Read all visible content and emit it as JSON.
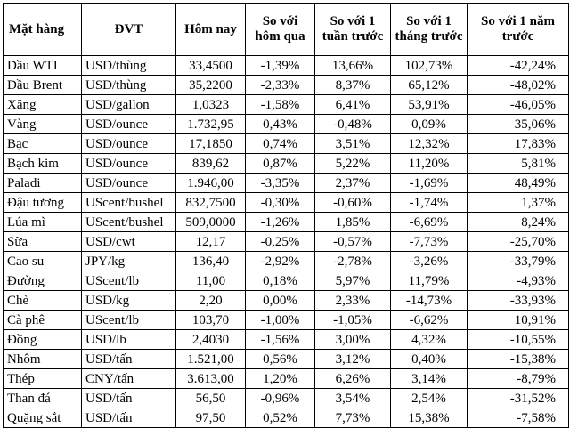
{
  "headers": [
    "Mặt hàng",
    "ĐVT",
    "Hôm nay",
    "So với hôm qua",
    "So với 1 tuần trước",
    "So với 1 tháng trước",
    "So với 1 năm trước"
  ],
  "rows": [
    [
      "Dầu WTI",
      "USD/thùng",
      "33,4500",
      "-1,39%",
      "13,66%",
      "102,73%",
      "-42,24%"
    ],
    [
      "Dầu Brent",
      "USD/thùng",
      "35,2200",
      "-2,33%",
      "8,37%",
      "65,12%",
      "-48,02%"
    ],
    [
      "Xăng",
      "USD/gallon",
      "1,0323",
      "-1,58%",
      "6,41%",
      "53,91%",
      "-46,05%"
    ],
    [
      "Vàng",
      "USD/ounce",
      "1.732,95",
      "0,43%",
      "-0,48%",
      "0,09%",
      "35,06%"
    ],
    [
      "Bạc",
      "USD/ounce",
      "17,1850",
      "0,74%",
      "3,51%",
      "12,32%",
      "17,83%"
    ],
    [
      "Bạch kim",
      "USD/ounce",
      "839,62",
      "0,87%",
      "5,22%",
      "11,20%",
      "5,81%"
    ],
    [
      "Paladi",
      "USD/ounce",
      "1.946,00",
      "-3,35%",
      "2,37%",
      "-1,69%",
      "48,49%"
    ],
    [
      "Đậu tương",
      "UScent/bushel",
      "832,7500",
      "-0,30%",
      "-0,60%",
      "-1,74%",
      "1,37%"
    ],
    [
      "Lúa mì",
      "UScent/bushel",
      "509,0000",
      "-1,26%",
      "1,85%",
      "-6,69%",
      "8,24%"
    ],
    [
      "Sữa",
      "USD/cwt",
      "12,17",
      "-0,25%",
      "-0,57%",
      "-7,73%",
      "-25,70%"
    ],
    [
      "Cao su",
      "JPY/kg",
      "136,40",
      "-2,92%",
      "-2,78%",
      "-3,26%",
      "-33,79%"
    ],
    [
      "Đường",
      "UScent/lb",
      "11,00",
      "0,18%",
      "5,97%",
      "11,79%",
      "-4,93%"
    ],
    [
      "Chè",
      "USD/kg",
      "2,20",
      "0,00%",
      "2,33%",
      "-14,73%",
      "-33,93%"
    ],
    [
      "Cà phê",
      "UScent/lb",
      "103,70",
      "-1,00%",
      "-1,05%",
      "-6,62%",
      "10,91%"
    ],
    [
      "Đồng",
      "USD/lb",
      "2,4030",
      "-1,56%",
      "3,00%",
      "4,32%",
      "-10,55%"
    ],
    [
      "Nhôm",
      "USD/tấn",
      "1.521,00",
      "0,56%",
      "3,12%",
      "0,40%",
      "-15,38%"
    ],
    [
      "Thép",
      "CNY/tấn",
      "3.613,00",
      "1,20%",
      "6,26%",
      "3,14%",
      "-8,79%"
    ],
    [
      "Than đá",
      "USD/tấn",
      "56,50",
      "-0,96%",
      "3,54%",
      "2,54%",
      "-31,52%"
    ],
    [
      "Quặng sắt",
      "USD/tấn",
      "97,50",
      "0,52%",
      "7,73%",
      "15,38%",
      "-7,58%"
    ]
  ]
}
